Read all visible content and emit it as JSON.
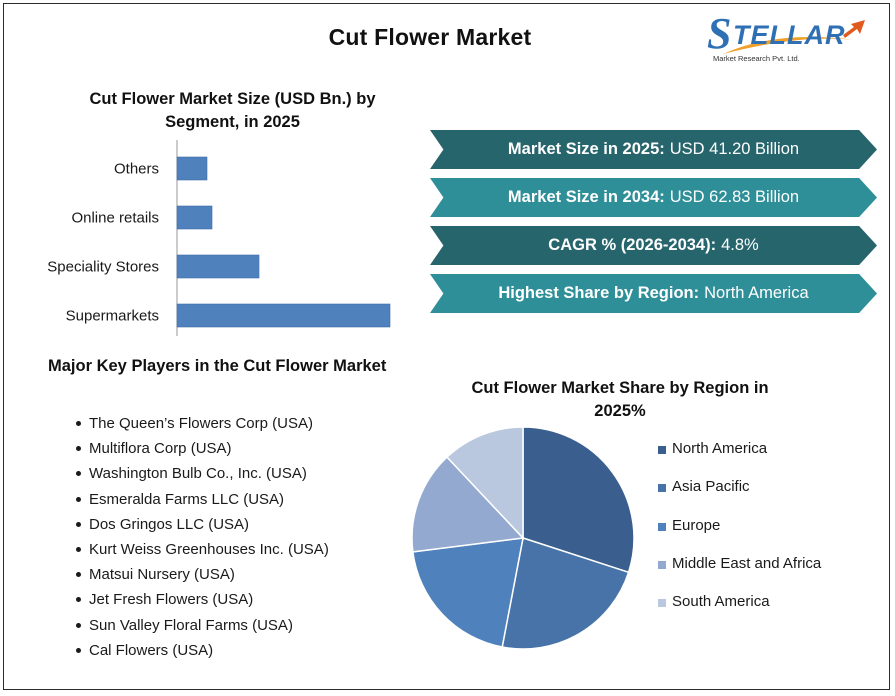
{
  "title": "Cut Flower Market",
  "logo": {
    "name": "TELLAR",
    "initial": "S",
    "tagline": "Market Research Pvt. Ltd."
  },
  "banners": [
    {
      "label": "Market Size in 2025:",
      "value": "USD 41.20 Billion",
      "color": "#27656d"
    },
    {
      "label": "Market Size in 2034:",
      "value": "USD 62.83 Billion",
      "color": "#2f8f98"
    },
    {
      "label": "CAGR % (2026-2034):",
      "value": "4.8%",
      "color": "#27656d"
    },
    {
      "label": "Highest Share by Region:",
      "value": "North America",
      "color": "#2f8f98"
    }
  ],
  "key_players": {
    "title": "Major Key Players in the Cut Flower Market",
    "items": [
      "The Queen’s Flowers Corp (USA)",
      "Multiflora Corp (USA)",
      "Washington Bulb Co., Inc. (USA)",
      "Esmeralda Farms LLC (USA)",
      "Dos Gringos LLC (USA)",
      "Kurt Weiss Greenhouses Inc. (USA)",
      "Matsui Nursery (USA)",
      "Jet Fresh Flowers (USA)",
      "Sun Valley Floral Farms (USA)",
      "Cal Flowers (USA)"
    ]
  },
  "chart_data": [
    {
      "type": "bar",
      "orientation": "horizontal",
      "title": "Cut Flower Market Size (USD Bn.) by Segment, in 2025",
      "categories": [
        "Others",
        "Online retails",
        "Speciality Stores",
        "Supermarkets"
      ],
      "values": [
        3.0,
        3.5,
        8.2,
        21.3
      ],
      "xlim": [
        0,
        22
      ],
      "color": "#4f81bd",
      "grid": false,
      "axis_tick_labels_shown": false
    },
    {
      "type": "pie",
      "title": "Cut Flower Market Share by Region in 2025%",
      "labels": [
        "North America",
        "Asia Pacific",
        "Europe",
        "Middle East and Africa",
        "South America"
      ],
      "values": [
        30,
        23,
        20,
        15,
        12
      ],
      "colors": [
        "#3a5f8f",
        "#4773a8",
        "#4f81bd",
        "#93a9cf",
        "#b9c7df"
      ],
      "legend": "right"
    }
  ]
}
